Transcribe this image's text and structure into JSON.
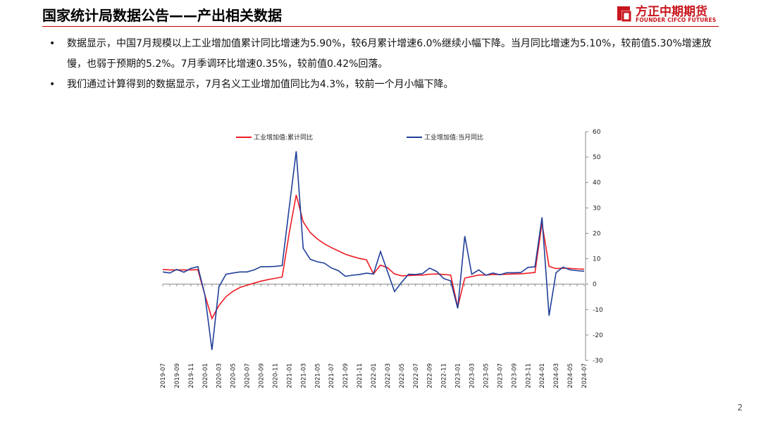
{
  "header": {
    "title": "国家统计局数据公告——产出相关数据",
    "logo_name": "方正中期期货",
    "logo_subtitle": "FOUNDER CIFCO FUTURES"
  },
  "bullets": [
    "数据显示，中国7月规模以上工业增加值累计同比增速为5.90%，较6月累计增速6.0%继续小幅下降。当月同比增速为5.10%，较前值5.30%增速放慢，也弱于预期的5.2%。7月季调环比增速0.35%，较前值0.42%回落。",
    "我们通过计算得到的数据显示，7月名义工业增加值同比为4.3%，较前一个月小幅下降。"
  ],
  "page_number": "2",
  "chart_data": {
    "type": "line",
    "categories": [
      "2019-07",
      null,
      "2019-09",
      null,
      "2019-11",
      null,
      "2020-01",
      null,
      "2020-03",
      null,
      "2020-05",
      null,
      "2020-07",
      null,
      "2020-09",
      null,
      "2020-11",
      null,
      "2021-01",
      null,
      "2021-03",
      null,
      "2021-05",
      null,
      "2021-07",
      null,
      "2021-09",
      null,
      "2021-11",
      null,
      "2022-01",
      null,
      "2022-03",
      null,
      "2022-05",
      null,
      "2022-07",
      null,
      "2022-09",
      null,
      "2022-11",
      null,
      "2023-01",
      null,
      "2023-03",
      null,
      "2023-05",
      null,
      "2023-07",
      null,
      "2023-09",
      null,
      "2023-11",
      null,
      "2024-01",
      null,
      "2024-03",
      null,
      "2024-05",
      null,
      "2024-07"
    ],
    "series": [
      {
        "name": "工业增加值:累计同比",
        "color": "#ee1c25",
        "values": [
          5.8,
          5.6,
          5.6,
          5.6,
          5.6,
          5.7,
          -4.3,
          -13.5,
          -8.4,
          -4.9,
          -2.8,
          -1.3,
          -0.4,
          0.4,
          1.2,
          1.8,
          2.3,
          2.8,
          20,
          35.1,
          24.5,
          20.3,
          17.8,
          15.9,
          14.4,
          13.1,
          11.8,
          10.9,
          10.1,
          9.6,
          4,
          7.5,
          6.5,
          4.0,
          3.3,
          3.4,
          3.5,
          3.6,
          3.9,
          4.0,
          3.8,
          3.6,
          -9,
          2.4,
          3.0,
          3.6,
          3.6,
          3.8,
          3.8,
          3.9,
          4.0,
          4.1,
          4.3,
          4.6,
          24,
          7.0,
          6.1,
          6.3,
          6.2,
          6.0,
          5.9
        ]
      },
      {
        "name": "工业增加值:当月同比",
        "color": "#1f3f99",
        "values": [
          4.8,
          4.4,
          5.8,
          4.7,
          6.2,
          6.9,
          -4.3,
          -25.9,
          -1.1,
          3.9,
          4.4,
          4.8,
          4.8,
          5.6,
          6.9,
          6.9,
          7.0,
          7.3,
          30,
          52.3,
          14.1,
          9.8,
          8.8,
          8.3,
          6.4,
          5.3,
          3.1,
          3.5,
          3.8,
          4.3,
          4,
          12.8,
          5.0,
          -2.9,
          0.7,
          3.9,
          3.8,
          4.2,
          6.3,
          5.0,
          2.2,
          1.3,
          -9.5,
          18.9,
          3.9,
          5.6,
          3.5,
          4.4,
          3.7,
          4.5,
          4.5,
          4.6,
          6.6,
          6.8,
          26.3,
          -12.4,
          4.5,
          6.7,
          5.6,
          5.3,
          5.1
        ]
      }
    ],
    "ylim": [
      -30,
      60
    ],
    "yticks": [
      -30,
      -20,
      -10,
      0,
      10,
      20,
      30,
      40,
      50,
      60
    ],
    "grid": false
  }
}
